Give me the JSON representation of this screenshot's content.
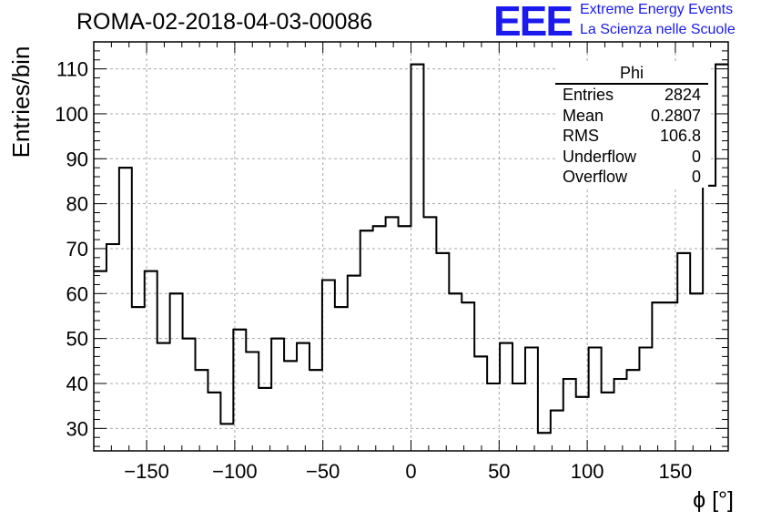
{
  "header": {
    "run_title": "ROMA-02-2018-04-03-00086",
    "logo_mark": "EEE",
    "logo_line1": "Extreme Energy Events",
    "logo_line2": "La Scienza nelle Scuole",
    "brand_color": "#1a1aee"
  },
  "stats_box": {
    "title": "Phi",
    "rows": [
      {
        "label": "Entries",
        "value": "2824"
      },
      {
        "label": "Mean",
        "value": "0.2807"
      },
      {
        "label": "RMS",
        "value": "106.8"
      },
      {
        "label": "Underflow",
        "value": "0"
      },
      {
        "label": "Overflow",
        "value": "0"
      }
    ]
  },
  "chart_data": {
    "type": "histogram",
    "title": "ROMA-02-2018-04-03-00086",
    "xlabel": "ϕ [°]",
    "ylabel": "Entries/bin",
    "xlim": [
      -180,
      180
    ],
    "ylim": [
      25,
      116
    ],
    "grid": true,
    "bin_width": 7.2,
    "x_ticks": [
      -150,
      -100,
      -50,
      0,
      50,
      100,
      150
    ],
    "x_tick_labels": [
      "−150",
      "−100",
      "−50",
      "0",
      "50",
      "100",
      "150"
    ],
    "y_ticks": [
      30,
      40,
      50,
      60,
      70,
      80,
      90,
      100,
      110
    ],
    "y_tick_labels": [
      "30",
      "40",
      "50",
      "60",
      "70",
      "80",
      "90",
      "100",
      "110"
    ],
    "values": [
      65,
      71,
      88,
      57,
      65,
      49,
      60,
      50,
      43,
      38,
      31,
      52,
      47,
      39,
      50,
      45,
      49,
      43,
      63,
      57,
      64,
      74,
      75,
      77,
      75,
      111,
      77,
      69,
      60,
      58,
      46,
      40,
      49,
      40,
      48,
      29,
      34,
      41,
      37,
      48,
      38,
      41,
      43,
      48,
      58,
      58,
      69,
      60,
      84,
      111
    ]
  }
}
